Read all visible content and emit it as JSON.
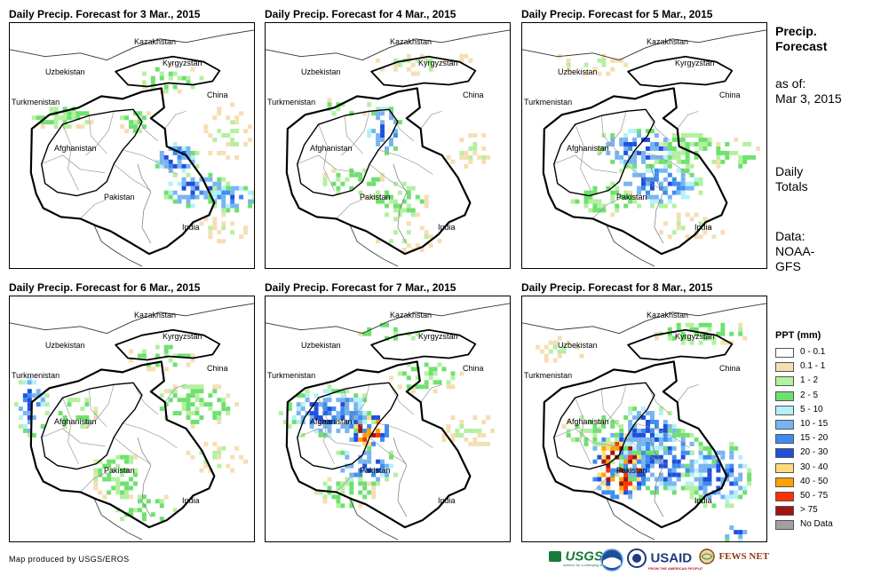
{
  "panels": [
    {
      "title": "Daily Precip. Forecast for 3 Mar., 2015",
      "dominant": "light"
    },
    {
      "title": "Daily Precip. Forecast for 4 Mar., 2015",
      "dominant": "light"
    },
    {
      "title": "Daily Precip. Forecast for 5 Mar., 2015",
      "dominant": "medium"
    },
    {
      "title": "Daily Precip. Forecast for 6 Mar., 2015",
      "dominant": "light"
    },
    {
      "title": "Daily Precip. Forecast for 7 Mar., 2015",
      "dominant": "medium"
    },
    {
      "title": "Daily Precip. Forecast for 8 Mar., 2015",
      "dominant": "heavy"
    }
  ],
  "country_labels": {
    "kazakhstan": "Kazakhstan",
    "uzbekistan": "Uzbekistan",
    "kyrgyzstan": "Kyrgyzstan",
    "turkmenistan": "Turkmenistan",
    "china": "China",
    "afghanistan": "Afghanistan",
    "pakistan": "Pakistan",
    "india": "India"
  },
  "side": {
    "title_line1": "Precip.",
    "title_line2": "Forecast",
    "asof_line1": "as of:",
    "asof_line2": "Mar 3, 2015",
    "totals_line1": "Daily",
    "totals_line2": "Totals",
    "data_line1": "Data:",
    "data_line2": "NOAA-",
    "data_line3": "GFS"
  },
  "legend": {
    "title": "PPT (mm)",
    "items": [
      {
        "label": "0 - 0.1",
        "color": "#ffffff"
      },
      {
        "label": "0.1 - 1",
        "color": "#f5deb3"
      },
      {
        "label": "1 - 2",
        "color": "#b4f0a0"
      },
      {
        "label": "2 - 5",
        "color": "#6ee06e"
      },
      {
        "label": "5 - 10",
        "color": "#b4f0fa"
      },
      {
        "label": "10 - 15",
        "color": "#78b4f0"
      },
      {
        "label": "15 - 20",
        "color": "#3c8cf0"
      },
      {
        "label": "20 - 30",
        "color": "#1e50dc"
      },
      {
        "label": "30 - 40",
        "color": "#ffdc78"
      },
      {
        "label": "40 - 50",
        "color": "#ffa000"
      },
      {
        "label": "50 - 75",
        "color": "#ff3200"
      },
      {
        "label": "> 75",
        "color": "#a01414"
      },
      {
        "label": "No Data",
        "color": "#a0a0a0"
      }
    ]
  },
  "footer": "Map produced by USGS/EROS",
  "logos": {
    "usgs": "USGS",
    "usgs_tagline": "science for a changing world",
    "usaid": "USAID",
    "usaid_tagline": "FROM THE AMERICAN PEOPLE",
    "fewsnet": "FEWS NET"
  }
}
